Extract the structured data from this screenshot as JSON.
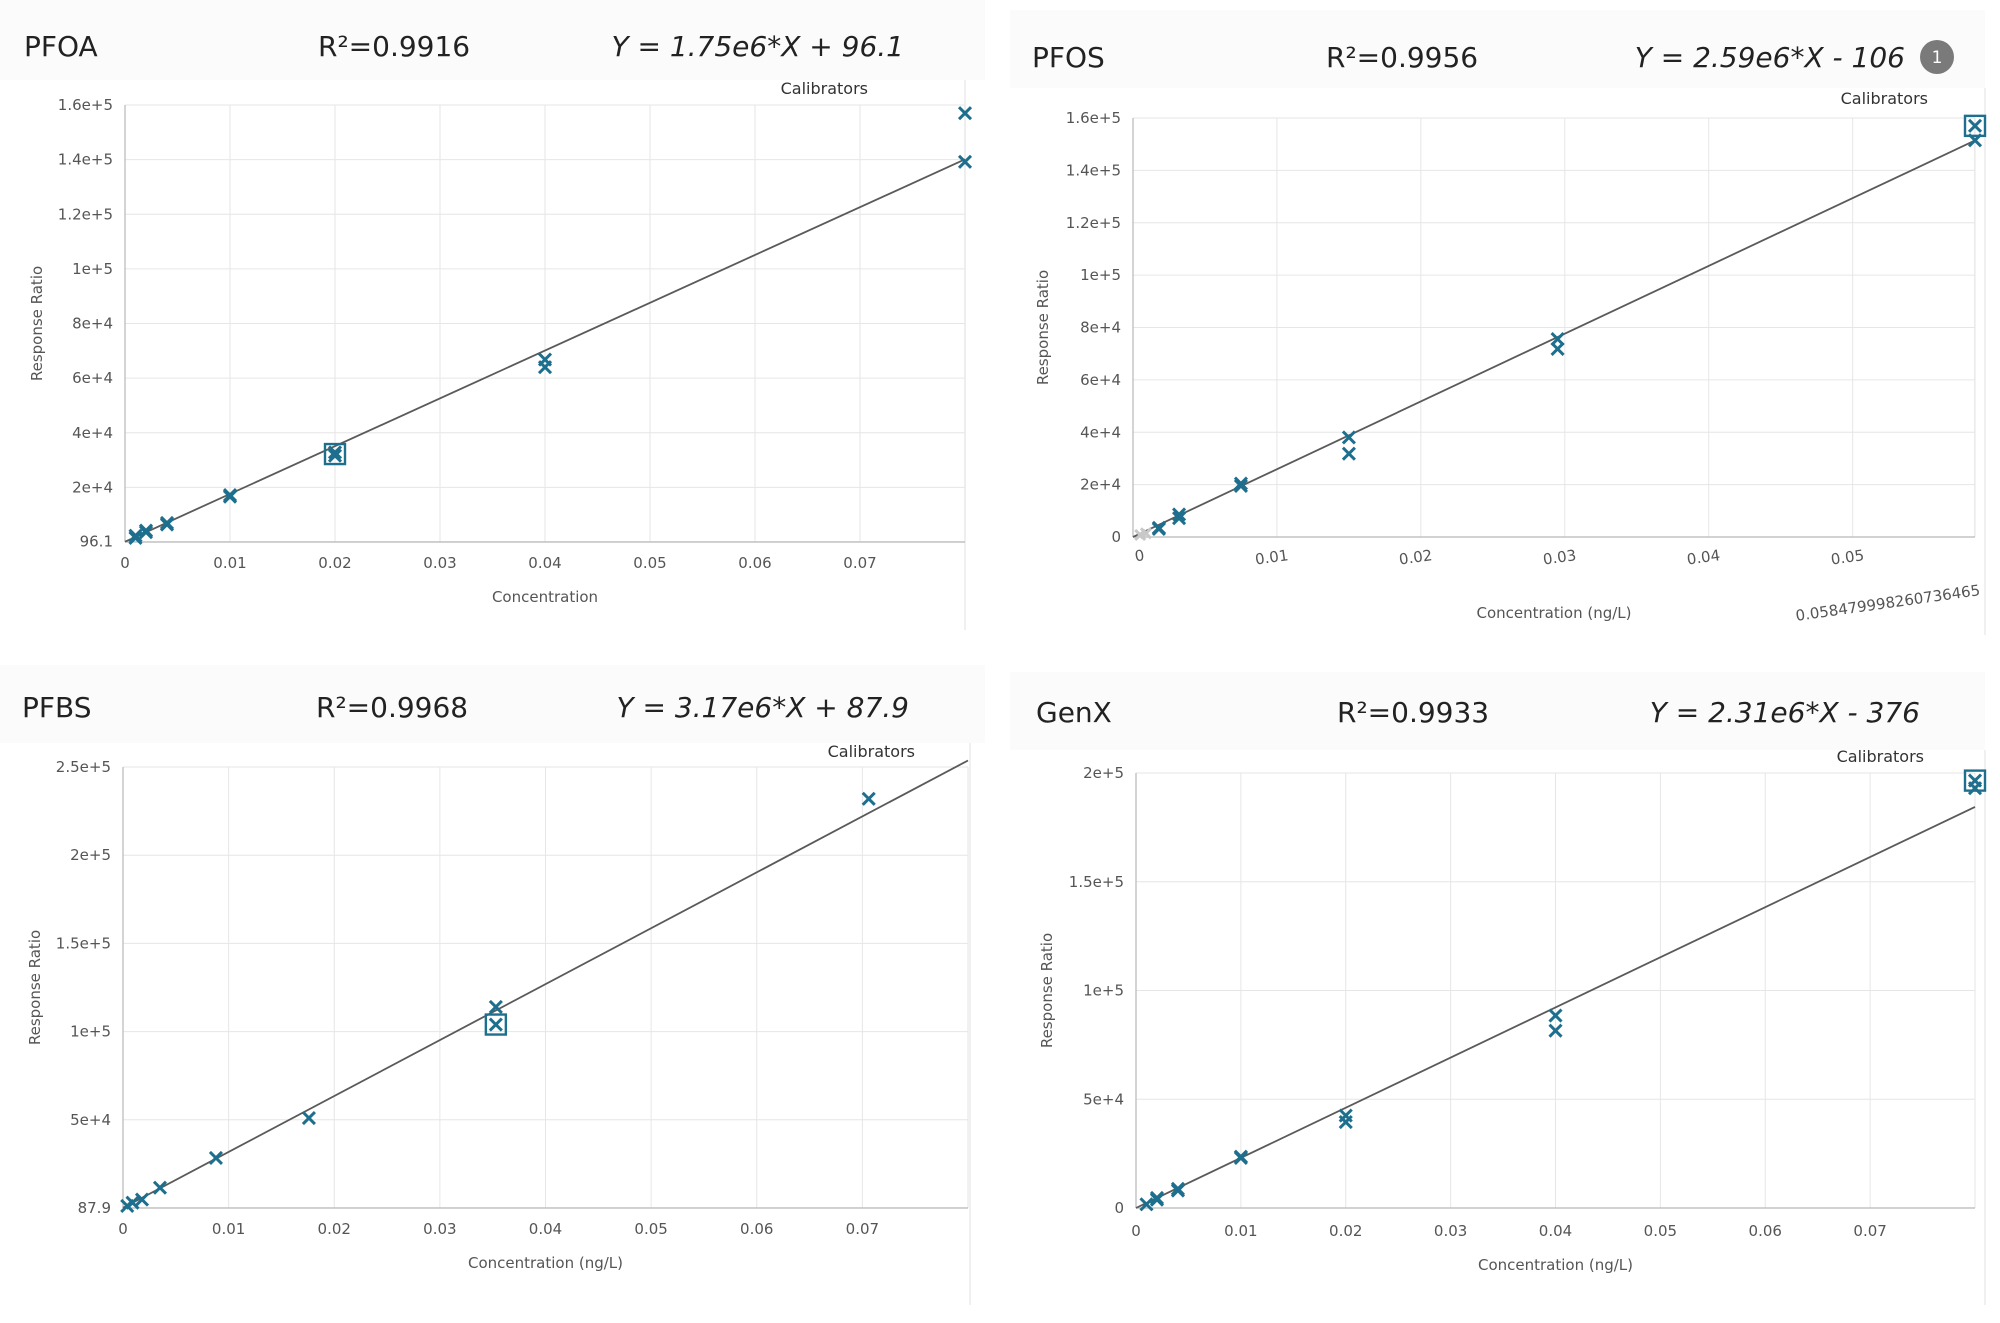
{
  "chart_data": [
    {
      "type": "scatter",
      "compound": "PFOA",
      "r2": "R²=0.9916",
      "equation": "Y = 1.75e6*X + 96.1",
      "legend": "Calibrators",
      "xlabel": "Concentration",
      "ylabel": "Response Ratio",
      "slope": 1750000,
      "intercept": 96.1,
      "xlim": [
        0,
        0.08
      ],
      "ylim": [
        0,
        160000
      ],
      "xticks": [
        "0",
        "0.01",
        "0.02",
        "0.03",
        "0.04",
        "0.05",
        "0.06",
        "0.07"
      ],
      "xtick_values": [
        0,
        0.01,
        0.02,
        0.03,
        0.04,
        0.05,
        0.06,
        0.07
      ],
      "yticks": [
        "96.1",
        "2e+4",
        "4e+4",
        "6e+4",
        "8e+4",
        "1e+5",
        "1.2e+5",
        "1.4e+5",
        "1.6e+5"
      ],
      "ytick_values": [
        96.1,
        20000,
        40000,
        60000,
        80000,
        100000,
        120000,
        140000,
        160000
      ],
      "points": [
        {
          "x": 0.001,
          "y": 1500
        },
        {
          "x": 0.001,
          "y": 2300
        },
        {
          "x": 0.002,
          "y": 3600
        },
        {
          "x": 0.002,
          "y": 4200
        },
        {
          "x": 0.004,
          "y": 6400
        },
        {
          "x": 0.004,
          "y": 7000
        },
        {
          "x": 0.01,
          "y": 16600
        },
        {
          "x": 0.01,
          "y": 17200
        },
        {
          "x": 0.02,
          "y": 31600
        },
        {
          "x": 0.02,
          "y": 32800
        },
        {
          "x": 0.04,
          "y": 64000
        },
        {
          "x": 0.04,
          "y": 66800
        },
        {
          "x": 0.08,
          "y": 139200
        },
        {
          "x": 0.08,
          "y": 157000
        }
      ],
      "highlighted": [
        {
          "x": 0.02,
          "y": 32200
        }
      ]
    },
    {
      "type": "scatter",
      "compound": "PFOS",
      "r2": "R²=0.9956",
      "equation": "Y = 2.59e6*X - 106",
      "badge": "1",
      "legend": "Calibrators",
      "xlabel": "Concentration (ng/L)",
      "ylabel": "Response Ratio",
      "slope": 2590000,
      "intercept": -106,
      "xlim": [
        0,
        0.0585
      ],
      "ylim": [
        0,
        160000
      ],
      "xticks": [
        "0",
        "0.01",
        "0.02",
        "0.03",
        "0.04",
        "0.05",
        "0.058479998260736465"
      ],
      "xtick_values": [
        0,
        0.01,
        0.02,
        0.03,
        0.04,
        0.05,
        0.05848
      ],
      "yticks": [
        "0",
        "2e+4",
        "4e+4",
        "6e+4",
        "8e+4",
        "1e+5",
        "1.2e+5",
        "1.4e+5",
        "1.6e+5"
      ],
      "ytick_values": [
        0,
        20000,
        40000,
        60000,
        80000,
        100000,
        120000,
        140000,
        160000
      ],
      "points": [
        {
          "x": 0.0018,
          "y": 3100
        },
        {
          "x": 0.0018,
          "y": 3500
        },
        {
          "x": 0.0032,
          "y": 7200
        },
        {
          "x": 0.0032,
          "y": 8600
        },
        {
          "x": 0.0075,
          "y": 19500
        },
        {
          "x": 0.0075,
          "y": 20400
        },
        {
          "x": 0.015,
          "y": 31800
        },
        {
          "x": 0.015,
          "y": 38000
        },
        {
          "x": 0.0295,
          "y": 71800
        },
        {
          "x": 0.0295,
          "y": 75600
        },
        {
          "x": 0.0585,
          "y": 151500
        },
        {
          "x": 0.0585,
          "y": 157000
        }
      ],
      "excluded": [
        {
          "x": 0.0005,
          "y": 800
        },
        {
          "x": 0.0009,
          "y": 1400
        }
      ],
      "highlighted": [
        {
          "x": 0.0585,
          "y": 157000
        }
      ]
    },
    {
      "type": "scatter",
      "compound": "PFBS",
      "r2": "R²=0.9968",
      "equation": "Y = 3.17e6*X + 87.9",
      "legend": "Calibrators",
      "xlabel": "Concentration (ng/L)",
      "ylabel": "Response Ratio",
      "slope": 3170000,
      "intercept": 87.9,
      "xlim": [
        0,
        0.08
      ],
      "ylim": [
        0,
        250000
      ],
      "xticks": [
        "0",
        "0.01",
        "0.02",
        "0.03",
        "0.04",
        "0.05",
        "0.06",
        "0.07"
      ],
      "xtick_values": [
        0,
        0.01,
        0.02,
        0.03,
        0.04,
        0.05,
        0.06,
        0.07
      ],
      "yticks": [
        "87.9",
        "5e+4",
        "1e+5",
        "1.5e+5",
        "2e+5",
        "2.5e+5"
      ],
      "ytick_values": [
        87.9,
        50000,
        100000,
        150000,
        200000,
        250000
      ],
      "points": [
        {
          "x": 0.0004,
          "y": 1200
        },
        {
          "x": 0.0009,
          "y": 3000
        },
        {
          "x": 0.0018,
          "y": 4800
        },
        {
          "x": 0.0035,
          "y": 11500
        },
        {
          "x": 0.0088,
          "y": 28400
        },
        {
          "x": 0.0176,
          "y": 51000
        },
        {
          "x": 0.0353,
          "y": 104000
        },
        {
          "x": 0.0353,
          "y": 114000
        },
        {
          "x": 0.0706,
          "y": 232000
        }
      ],
      "highlighted": [
        {
          "x": 0.0353,
          "y": 104000
        }
      ]
    },
    {
      "type": "scatter",
      "compound": "GenX",
      "r2": "R²=0.9933",
      "equation": "Y = 2.31e6*X - 376",
      "legend": "Calibrators",
      "xlabel": "Concentration (ng/L)",
      "ylabel": "Response Ratio",
      "slope": 2310000,
      "intercept": -376,
      "xlim": [
        0,
        0.08
      ],
      "ylim": [
        0,
        200000
      ],
      "xticks": [
        "0",
        "0.01",
        "0.02",
        "0.03",
        "0.04",
        "0.05",
        "0.06",
        "0.07"
      ],
      "xtick_values": [
        0,
        0.01,
        0.02,
        0.03,
        0.04,
        0.05,
        0.06,
        0.07
      ],
      "yticks": [
        "0",
        "5e+4",
        "1e+5",
        "1.5e+5",
        "2e+5"
      ],
      "ytick_values": [
        0,
        50000,
        100000,
        150000,
        200000
      ],
      "points": [
        {
          "x": 0.001,
          "y": 1700
        },
        {
          "x": 0.002,
          "y": 3800
        },
        {
          "x": 0.002,
          "y": 4600
        },
        {
          "x": 0.004,
          "y": 8000
        },
        {
          "x": 0.004,
          "y": 8800
        },
        {
          "x": 0.01,
          "y": 23000
        },
        {
          "x": 0.01,
          "y": 23600
        },
        {
          "x": 0.02,
          "y": 39500
        },
        {
          "x": 0.02,
          "y": 42500
        },
        {
          "x": 0.04,
          "y": 81500
        },
        {
          "x": 0.04,
          "y": 88500
        },
        {
          "x": 0.08,
          "y": 193000
        },
        {
          "x": 0.08,
          "y": 196500
        }
      ],
      "highlighted": [
        {
          "x": 0.08,
          "y": 196500
        }
      ]
    }
  ],
  "colors": {
    "marker": "#1e6f8e",
    "excluded": "#c8c8c8",
    "fit_line": "#5a5a5a",
    "grid": "#e6e6e6"
  }
}
